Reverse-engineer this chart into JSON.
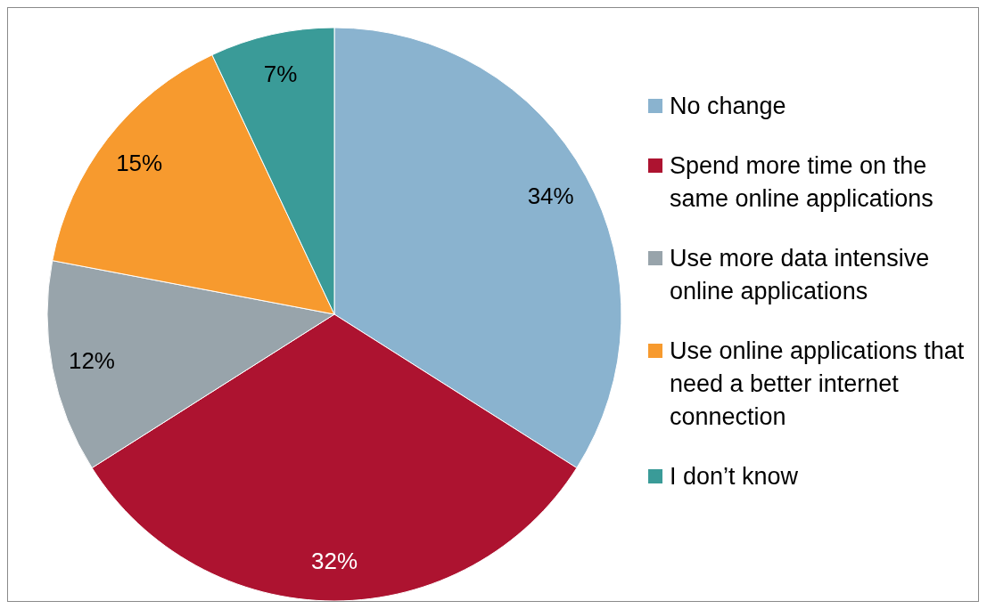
{
  "chart_data": {
    "type": "pie",
    "categories": [
      "No change",
      "Spend more time on the same online applications",
      "Use more data intensive online applications",
      "Use online applications that need a better internet connection",
      "I don’t know"
    ],
    "values": [
      34,
      32,
      12,
      15,
      7
    ],
    "colors": [
      "#8ab3cf",
      "#ad1330",
      "#98a4ab",
      "#f79a2e",
      "#3a9b98"
    ],
    "value_labels": [
      "34%",
      "32%",
      "12%",
      "15%",
      "7%"
    ],
    "legend": "right"
  }
}
